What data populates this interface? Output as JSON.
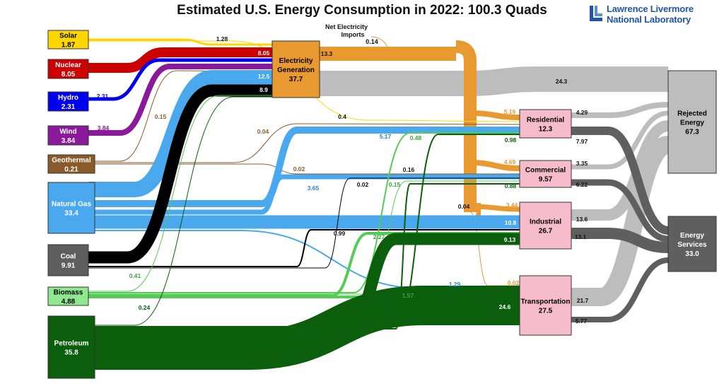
{
  "title": "Estimated U.S. Energy Consumption in 2022: 100.3 Quads",
  "logo": {
    "line1": "Lawrence Livermore",
    "line2": "National Laboratory"
  },
  "colors": {
    "solar": "#ffd700",
    "nuclear": "#cc0000",
    "hydro": "#0000ee",
    "wind": "#8b1a9a",
    "geothermal": "#8b5a2b",
    "natural_gas": "#4aa8ef",
    "coal": "#000000",
    "biomass": "#55cc55",
    "petroleum": "#0b5e0b",
    "electricity": "#e8992f",
    "rejected": "#bdbdbd",
    "services": "#5f5f5f",
    "sector_box": "#f7bccb",
    "label_gray": "#111111"
  },
  "sources": [
    {
      "id": "solar",
      "name": "Solar",
      "value": "1.87"
    },
    {
      "id": "nuclear",
      "name": "Nuclear",
      "value": "8.05"
    },
    {
      "id": "hydro",
      "name": "Hydro",
      "value": "2.31"
    },
    {
      "id": "wind",
      "name": "Wind",
      "value": "3.84"
    },
    {
      "id": "geothermal",
      "name": "Geothermal",
      "value": "0.21"
    },
    {
      "id": "natural_gas",
      "name": "Natural Gas",
      "value": "33.4"
    },
    {
      "id": "coal",
      "name": "Coal",
      "value": "9.91"
    },
    {
      "id": "biomass",
      "name": "Biomass",
      "value": "4.88"
    },
    {
      "id": "petroleum",
      "name": "Petroleum",
      "value": "35.8"
    }
  ],
  "electricity": {
    "name_line1": "Electricity",
    "name_line2": "Generation",
    "value": "37.7"
  },
  "net_imports": {
    "line1": "Net Electricity",
    "line2": "Imports",
    "value": "0.14"
  },
  "sectors": [
    {
      "id": "residential",
      "name": "Residential",
      "value": "12.3"
    },
    {
      "id": "commercial",
      "name": "Commercial",
      "value": "9.57"
    },
    {
      "id": "industrial",
      "name": "Industrial",
      "value": "26.7"
    },
    {
      "id": "transportation",
      "name": "Transportation",
      "value": "27.5"
    }
  ],
  "outputs": {
    "rejected": {
      "name_line1": "Rejected",
      "name_line2": "Energy",
      "value": "67.3"
    },
    "services": {
      "name_line1": "Energy",
      "name_line2": "Services",
      "value": "33.0"
    }
  },
  "flow_labels": [
    {
      "id": "solar-elec",
      "text": "1.28"
    },
    {
      "id": "nuclear-elec",
      "text": "8.05"
    },
    {
      "id": "hydro-elec",
      "text": "2.31"
    },
    {
      "id": "wind-elec",
      "text": "3.84"
    },
    {
      "id": "geo-elec",
      "text": "0.15"
    },
    {
      "id": "geo-res",
      "text": "0.04"
    },
    {
      "id": "geo-com",
      "text": "0.02"
    },
    {
      "id": "gas-elec",
      "text": "12.5"
    },
    {
      "id": "coal-elec",
      "text": "8.9"
    },
    {
      "id": "elec-total",
      "text": "13.3"
    },
    {
      "id": "elec-rejected",
      "text": "24.3"
    },
    {
      "id": "solar-res",
      "text": "0.4"
    },
    {
      "id": "gas-res",
      "text": "5.17"
    },
    {
      "id": "bio-res",
      "text": "0.48"
    },
    {
      "id": "gas-com",
      "text": "3.65"
    },
    {
      "id": "coal-com",
      "text": "0.02"
    },
    {
      "id": "petro-res",
      "text": "0.16"
    },
    {
      "id": "bio-com",
      "text": "0.15"
    },
    {
      "id": "petro-com-small",
      "text": "0.04"
    },
    {
      "id": "coal-ind",
      "text": "0.99"
    },
    {
      "id": "bio-ind",
      "text": "2.27"
    },
    {
      "id": "gas-trans",
      "text": "1.29"
    },
    {
      "id": "bio-trans",
      "text": "1.57"
    },
    {
      "id": "bio-elec",
      "text": "0.41"
    },
    {
      "id": "petro-elec",
      "text": "0.24"
    },
    {
      "id": "elec-res",
      "text": "5.19"
    },
    {
      "id": "elec-com",
      "text": "4.69"
    },
    {
      "id": "elec-ind",
      "text": "3.44"
    },
    {
      "id": "elec-trans",
      "text": "0.02"
    },
    {
      "id": "petro-res2",
      "text": "0.98"
    },
    {
      "id": "petro-com",
      "text": "0.88"
    },
    {
      "id": "gas-ind",
      "text": "10.8"
    },
    {
      "id": "petro-ind",
      "text": "9.13"
    },
    {
      "id": "petro-trans",
      "text": "24.6"
    },
    {
      "id": "res-rej",
      "text": "4.29"
    },
    {
      "id": "res-svc",
      "text": "7.97"
    },
    {
      "id": "com-rej",
      "text": "3.35"
    },
    {
      "id": "com-svc",
      "text": "6.22"
    },
    {
      "id": "ind-rej",
      "text": "13.6"
    },
    {
      "id": "ind-svc",
      "text": "13.1"
    },
    {
      "id": "trans-rej",
      "text": "21.7"
    },
    {
      "id": "trans-svc",
      "text": "5.77"
    }
  ]
}
